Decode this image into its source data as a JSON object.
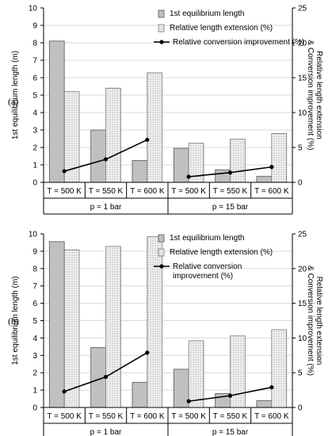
{
  "colors": {
    "gray_bar": "#c0c0c0",
    "dotted_bar": "#f2f2f2",
    "line": "#000000"
  },
  "chart_data": [
    {
      "type": "bar",
      "panel_label": "(a)",
      "categories": [
        "T = 500 K",
        "T = 550 K",
        "T = 600 K",
        "T = 500 K",
        "T = 550 K",
        "T = 600 K"
      ],
      "groups": [
        {
          "label": "p = 1 bar",
          "start": 0,
          "end": 2
        },
        {
          "label": "p = 15 bar",
          "start": 3,
          "end": 5
        }
      ],
      "ylabel": "1st equilibrium length (m)",
      "ylabel_right": [
        "Relative length extension",
        "& Conversion improvement (%)"
      ],
      "ylim": [
        0,
        10
      ],
      "yticks": [
        "0",
        "1",
        "2",
        "3",
        "4",
        "5",
        "6",
        "7",
        "8",
        "9",
        "10"
      ],
      "ylim_right": [
        0,
        25
      ],
      "yticks_right": [
        "0",
        "5",
        "10",
        "15",
        "20",
        "25"
      ],
      "series": [
        {
          "name": "1st equilibrium length",
          "kind": "bar_gray",
          "axis": "left",
          "values": [
            8.1,
            3.0,
            1.25,
            1.95,
            0.72,
            0.35
          ]
        },
        {
          "name": "Relative length extension (%)",
          "kind": "bar_dotted",
          "axis": "right",
          "values": [
            13.0,
            13.5,
            15.7,
            5.6,
            6.2,
            7.0
          ]
        },
        {
          "name": "Relative conversion improvement (%)",
          "kind": "line",
          "axis": "right",
          "values": [
            1.6,
            3.3,
            6.1,
            0.8,
            1.4,
            2.2
          ]
        }
      ],
      "legend": [
        {
          "text": "1st equilibrium length",
          "kind": "bar_gray"
        },
        {
          "text": "Relative length extension (%)",
          "kind": "bar_dotted"
        },
        {
          "text": "Relative conversion improvement (%)",
          "kind": "line"
        }
      ]
    },
    {
      "type": "bar",
      "panel_label": "(b)",
      "categories": [
        "T = 500 K",
        "T = 550 K",
        "T = 600 K",
        "T = 500 K",
        "T = 550 K",
        "T = 600 K"
      ],
      "groups": [
        {
          "label": "p = 1 bar",
          "start": 0,
          "end": 2
        },
        {
          "label": "p = 15 bar",
          "start": 3,
          "end": 5
        }
      ],
      "ylabel": "1st equilibrium length (m)",
      "ylabel_right": [
        "Relative length extension",
        "& Conversion improvement (%)"
      ],
      "ylim": [
        0,
        10
      ],
      "yticks": [
        "0",
        "1",
        "2",
        "3",
        "4",
        "5",
        "6",
        "7",
        "8",
        "9",
        "10"
      ],
      "ylim_right": [
        0,
        25
      ],
      "yticks_right": [
        "0",
        "5",
        "10",
        "15",
        "20",
        "25"
      ],
      "series": [
        {
          "name": "1st equilibrium length",
          "kind": "bar_gray",
          "axis": "left",
          "values": [
            9.55,
            3.45,
            1.45,
            2.2,
            0.8,
            0.4
          ]
        },
        {
          "name": "Relative length extension (%)",
          "kind": "bar_dotted",
          "axis": "right",
          "values": [
            22.7,
            23.2,
            24.6,
            9.6,
            10.3,
            11.2
          ]
        },
        {
          "name": "Relative conversion improvement (%)",
          "kind": "line",
          "axis": "right",
          "values": [
            2.3,
            4.4,
            7.9,
            0.9,
            1.7,
            2.9
          ]
        }
      ],
      "legend": [
        {
          "text": "1st equilibrium length",
          "kind": "bar_gray"
        },
        {
          "text": "Relative length extension (%)",
          "kind": "bar_dotted"
        },
        {
          "text": "Relative conversion",
          "text2": "improvement (%)",
          "kind": "line"
        }
      ]
    }
  ]
}
